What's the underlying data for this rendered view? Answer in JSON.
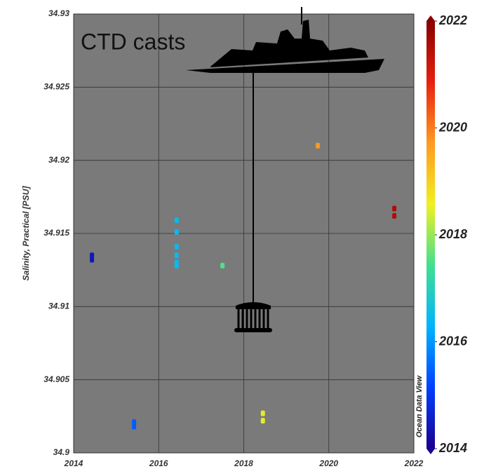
{
  "chart_data": {
    "type": "scatter",
    "annotation": "CTD casts",
    "ylabel": "Salinity, Practical [PSU]",
    "watermark": "Ocean Data View",
    "x": [
      2014.43,
      2014.43,
      2015.42,
      2015.42,
      2016.42,
      2016.42,
      2016.42,
      2016.42,
      2016.42,
      2016.42,
      2017.5,
      2018.45,
      2018.45,
      2019.74,
      2021.54,
      2021.54
    ],
    "y": [
      34.9135,
      34.9132,
      34.9021,
      34.9018,
      34.9159,
      34.9151,
      34.9141,
      34.9135,
      34.913,
      34.9128,
      34.9128,
      34.9027,
      34.9022,
      34.921,
      34.9167,
      34.9162
    ],
    "xlim": [
      2014,
      2022
    ],
    "xticks": [
      2014,
      2016,
      2018,
      2020,
      2022
    ],
    "ylim": [
      34.9,
      34.93
    ],
    "yticks": [
      34.9,
      34.905,
      34.91,
      34.915,
      34.92,
      34.925,
      34.93
    ],
    "grid": true,
    "colorbar": {
      "clim": [
        2014,
        2022
      ],
      "ticks": [
        2014,
        2016,
        2018,
        2020,
        2022
      ],
      "colormap": [
        "#1c0090",
        "#0040ff",
        "#00b4ff",
        "#40e090",
        "#f0f020",
        "#ff9a20",
        "#e82010",
        "#880000"
      ]
    },
    "background": "#7a7a7a"
  }
}
